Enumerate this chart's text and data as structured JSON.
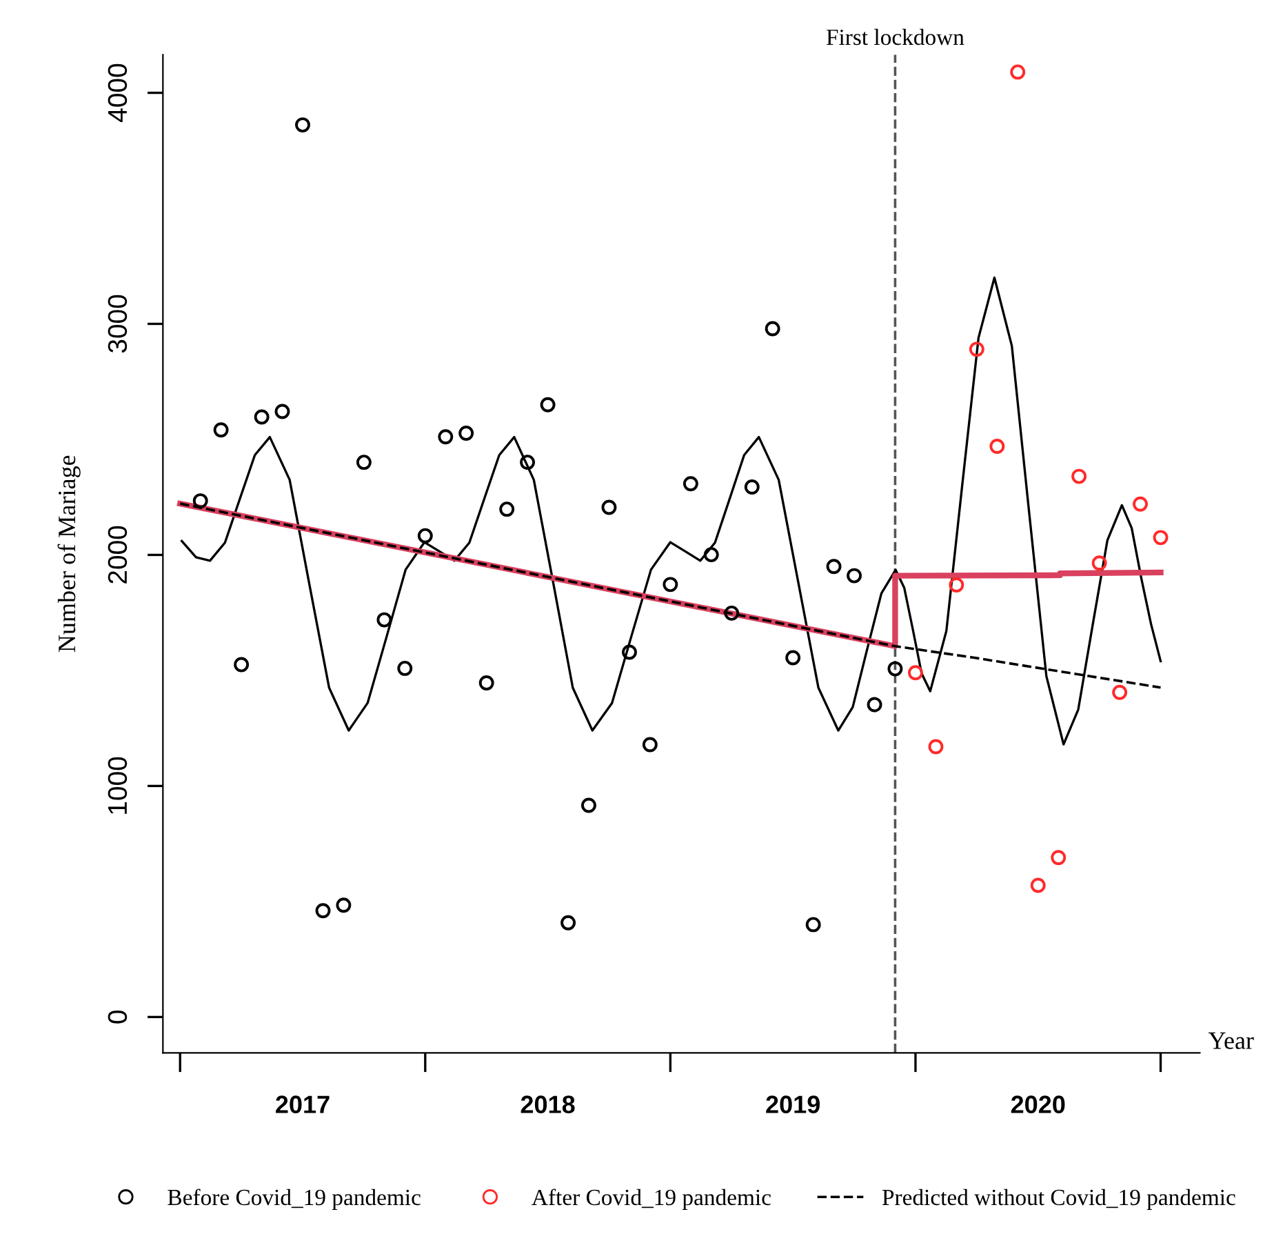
{
  "chart_data": {
    "type": "scatter",
    "xlabel": "Year",
    "ylabel": "Number of Mariage",
    "xlim": [
      2016.93,
      2021.16
    ],
    "ylim": [
      -155,
      4165
    ],
    "xticks": [
      {
        "value": 2017,
        "label": null
      },
      {
        "value": 2017.5,
        "label": "2017"
      },
      {
        "value": 2018,
        "label": null
      },
      {
        "value": 2018.5,
        "label": "2018"
      },
      {
        "value": 2019,
        "label": null
      },
      {
        "value": 2019.5,
        "label": "2019"
      },
      {
        "value": 2020,
        "label": null
      },
      {
        "value": 2020.5,
        "label": "2020"
      },
      {
        "value": 2021,
        "label": null
      }
    ],
    "yticks": [
      0,
      1000,
      2000,
      3000,
      4000
    ],
    "grid": false,
    "legend": "bottom",
    "ref_lines": [
      {
        "axis": "x",
        "value": 2019.917,
        "label": "First lockdown",
        "color": "#555555",
        "line_style": "dashed"
      }
    ],
    "series": [
      {
        "type": "line",
        "color": "#000000",
        "line_style": "solid",
        "x": [
          2017.007,
          2017.065,
          2017.122,
          2017.183,
          2017.244,
          2017.305,
          2017.366,
          2017.447,
          2017.527,
          2017.608,
          2017.688,
          2017.765,
          2017.843,
          2017.92,
          2017.997,
          2018.058,
          2018.119,
          2018.18,
          2018.241,
          2018.302,
          2018.363,
          2018.443,
          2018.523,
          2018.602,
          2018.682,
          2018.762,
          2018.841,
          2018.921,
          2019.0,
          2019.061,
          2019.122,
          2019.182,
          2019.242,
          2019.301,
          2019.361,
          2019.442,
          2019.523,
          2019.604,
          2019.685,
          2019.744,
          2019.802,
          2019.861,
          2019.919,
          2019.954,
          2019.99,
          2020.025,
          2020.06,
          2020.126,
          2020.191,
          2020.257,
          2020.322,
          2020.393,
          2020.463,
          2020.534,
          2020.604,
          2020.664,
          2020.723,
          2020.783,
          2020.842,
          2020.882,
          2020.921,
          2020.961,
          2021.0
        ],
        "values": [
          2060,
          1990,
          1975,
          2053,
          2243,
          2432,
          2510,
          2325,
          1875,
          1425,
          1240,
          1359,
          1648,
          1936,
          2055,
          2015,
          1975,
          2053,
          2243,
          2432,
          2510,
          2325,
          1875,
          1425,
          1240,
          1359,
          1648,
          1936,
          2055,
          2015,
          1975,
          2053,
          2243,
          2432,
          2510,
          2325,
          1875,
          1425,
          1240,
          1341,
          1588,
          1834,
          1935,
          1858,
          1673,
          1487,
          1410,
          1671,
          2305,
          2939,
          3200,
          2905,
          2190,
          1475,
          1180,
          1331,
          1698,
          2064,
          2215,
          2116,
          1900,
          1700,
          1540
        ]
      },
      {
        "type": "line",
        "color": "#d9415e",
        "line_style": "solid",
        "x": [
          2017.0,
          2019.917,
          2019.917,
          2020.59,
          2020.59,
          2021.0
        ],
        "values": [
          2222,
          1605,
          1910,
          1912,
          1920,
          1924
        ]
      },
      {
        "type": "line",
        "name": "Predicted without Covid_19 pandemic",
        "color": "#000000",
        "line_style": "dashed",
        "x": [
          2017.0,
          2019.917,
          2020.24,
          2021.0
        ],
        "values": [
          2222,
          1605,
          1555,
          1426
        ]
      },
      {
        "name": "Before Covid_19 pandemic",
        "color": "#000000",
        "marker": "circle",
        "x": [
          2017.083,
          2017.167,
          2017.25,
          2017.333,
          2017.417,
          2017.5,
          2017.583,
          2017.667,
          2017.75,
          2017.833,
          2017.917,
          2018.0,
          2018.083,
          2018.167,
          2018.25,
          2018.333,
          2018.417,
          2018.5,
          2018.583,
          2018.667,
          2018.75,
          2018.833,
          2018.917,
          2019.0,
          2019.083,
          2019.167,
          2019.25,
          2019.333,
          2019.417,
          2019.5,
          2019.583,
          2019.667,
          2019.75,
          2019.833,
          2019.917
        ],
        "values": [
          2234,
          2541,
          1525,
          2597,
          2621,
          3861,
          460,
          484,
          2401,
          1719,
          1509,
          2083,
          2511,
          2527,
          1446,
          2198,
          2401,
          2650,
          408,
          916,
          2206,
          1579,
          1179,
          1872,
          2308,
          2001,
          1748,
          2294,
          2979,
          1555,
          400,
          1950,
          1910,
          1352,
          1507
        ]
      },
      {
        "name": "After Covid_19 pandemic",
        "color": "#ff2a2a",
        "marker": "circle",
        "x": [
          2020.0,
          2020.083,
          2020.167,
          2020.25,
          2020.333,
          2020.417,
          2020.5,
          2020.583,
          2020.667,
          2020.75,
          2020.833,
          2020.917,
          2021.0
        ],
        "values": [
          1490,
          1170,
          1870,
          2890,
          2470,
          4090,
          570,
          690,
          2340,
          1965,
          1405,
          2220,
          2075
        ]
      }
    ]
  }
}
